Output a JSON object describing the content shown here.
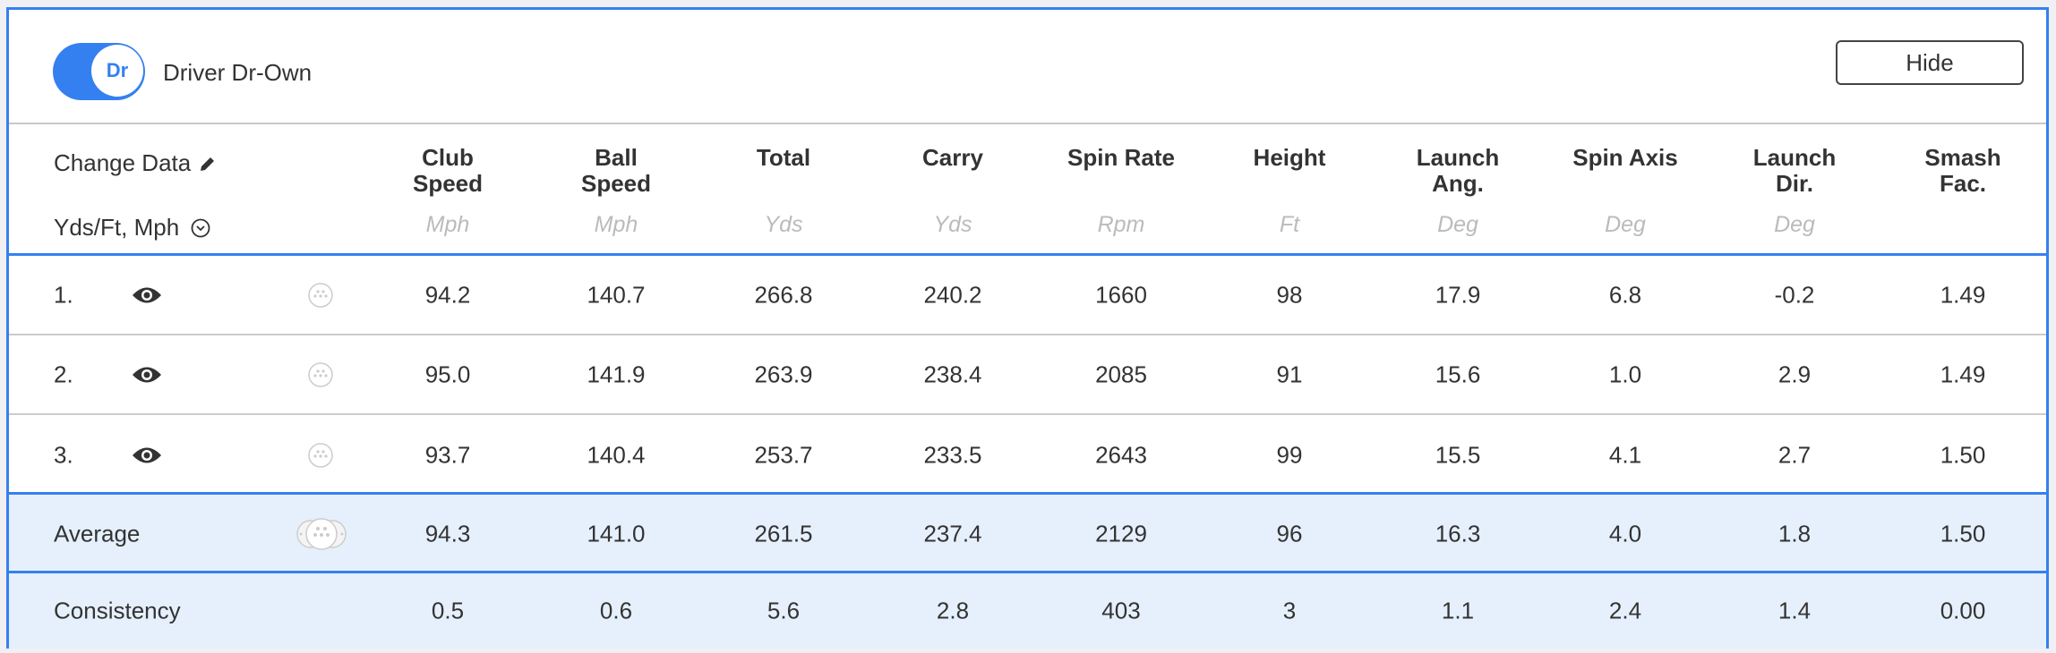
{
  "header": {
    "toggle_label": "Dr",
    "toggle_on": true,
    "club_name": "Driver Dr-Own",
    "hide_label": "Hide"
  },
  "controls": {
    "change_data": "Change Data",
    "units_select": "Yds/Ft, Mph"
  },
  "columns": [
    {
      "l1": "Club",
      "l2": "Speed",
      "unit": "Mph"
    },
    {
      "l1": "Ball",
      "l2": "Speed",
      "unit": "Mph"
    },
    {
      "l1": "Total",
      "l2": "",
      "unit": "Yds"
    },
    {
      "l1": "Carry",
      "l2": "",
      "unit": "Yds"
    },
    {
      "l1": "Spin Rate",
      "l2": "",
      "unit": "Rpm"
    },
    {
      "l1": "Height",
      "l2": "",
      "unit": "Ft"
    },
    {
      "l1": "Launch",
      "l2": "Ang.",
      "unit": "Deg"
    },
    {
      "l1": "Spin Axis",
      "l2": "",
      "unit": "Deg"
    },
    {
      "l1": "Launch",
      "l2": "Dir.",
      "unit": "Deg"
    },
    {
      "l1": "Smash",
      "l2": "Fac.",
      "unit": ""
    }
  ],
  "rows": [
    {
      "label": "1.",
      "values": [
        "94.2",
        "140.7",
        "266.8",
        "240.2",
        "1660",
        "98",
        "17.9",
        "6.8",
        "-0.2",
        "1.49"
      ]
    },
    {
      "label": "2.",
      "values": [
        "95.0",
        "141.9",
        "263.9",
        "238.4",
        "2085",
        "91",
        "15.6",
        "1.0",
        "2.9",
        "1.49"
      ]
    },
    {
      "label": "3.",
      "values": [
        "93.7",
        "140.4",
        "253.7",
        "233.5",
        "2643",
        "99",
        "15.5",
        "4.1",
        "2.7",
        "1.50"
      ]
    }
  ],
  "average": {
    "label": "Average",
    "values": [
      "94.3",
      "141.0",
      "261.5",
      "237.4",
      "2129",
      "96",
      "16.3",
      "4.0",
      "1.8",
      "1.50"
    ]
  },
  "consistency": {
    "label": "Consistency",
    "values": [
      "0.5",
      "0.6",
      "5.6",
      "2.8",
      "403",
      "3",
      "1.1",
      "2.4",
      "1.4",
      "0.00"
    ]
  },
  "colors": {
    "accent": "#3580f0",
    "summary_bg": "#e6f0fc"
  }
}
